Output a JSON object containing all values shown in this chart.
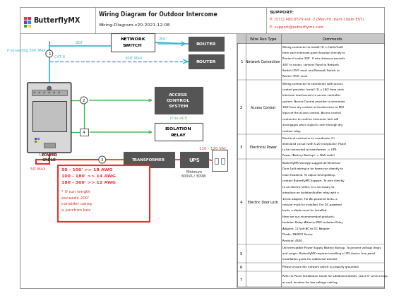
{
  "title": "Wiring Diagram for Outdoor Intercome",
  "subtitle": "Wiring-Diagram-v20-2021-12-08",
  "support_label": "SUPPORT:",
  "support_phone": "P: (571) 480.6579 ext. 2 (Mon-Fri, 6am-10pm EST)",
  "support_email": "E: support@butterflymx.com",
  "logo_text": "ButterflyMX",
  "bg_color": "#ffffff",
  "cyan": "#29b8d0",
  "green": "#3dba4e",
  "red": "#e83030",
  "dark_box": "#555555",
  "rows": [
    {
      "num": "1",
      "type": "Network Connection",
      "lines": [
        "Wiring contractor to install (1) x Cat5e/Cat6",
        "from each Intercom panel location directly to",
        "Router if under 300'. If wire distance exceeds",
        "300' to router, connect Panel to Network",
        "Switch (250' max) and Network Switch to",
        "Router (250' max)."
      ]
    },
    {
      "num": "2",
      "type": "Access Control",
      "lines": [
        "Wiring contractor to coordinate with access",
        "control provider, install (1) x 18/2 from each",
        "Intercom touchscreen to access controller",
        "system. Access Control provider to terminate",
        "18/2 from dry contact of touchscreen to REX",
        "Input of the access control. Access control",
        "contractor to confirm electronic lock will",
        "disengages when signal is sent through dry",
        "contact relay."
      ]
    },
    {
      "num": "3",
      "type": "Electrical Power",
      "lines": [
        "Electrical contractor to coordinate (1)",
        "dedicated circuit (with 5-20 receptacle). Panel",
        "to be connected to transformer -> UPS",
        "Power (Battery Backup) -> Wall outlet"
      ]
    },
    {
      "num": "4",
      "type": "Electric Door Lock",
      "lines": [
        "ButterflyMX strongly suggest all Electrical",
        "Door Lock wiring to be home-run directly to",
        "main headend. To adjust timing/delay,",
        "contact ButterflyMX Support. To wire directly",
        "to an electric strike, it is necessary to",
        "introduce an isolation/buffer relay with a",
        "12vdc adapter. For AC-powered locks, a",
        "resistor must be installed. For DC-powered",
        "locks, a diode must be installed.",
        "Here are our recommended products:",
        "Isolation Relay: Altronix IR5S Isolation Relay",
        "Adapter: 12 Volt AC to DC Adapter",
        "Diode: 1N4001 Series",
        "Resistor: 4500"
      ]
    },
    {
      "num": "5",
      "type": "",
      "lines": [
        "Uninterruptible Power Supply Battery Backup. To prevent voltage drops",
        "and surges, ButterflyMX requires installing a UPS device (see panel",
        "installation guide for additional details)."
      ]
    },
    {
      "num": "6",
      "type": "",
      "lines": [
        "Please ensure the network switch is properly grounded."
      ]
    },
    {
      "num": "7",
      "type": "",
      "lines": [
        "Refer to Panel Installation Guide for additional details. Leave 6' service loop",
        "at each location for low voltage cabling."
      ]
    }
  ]
}
